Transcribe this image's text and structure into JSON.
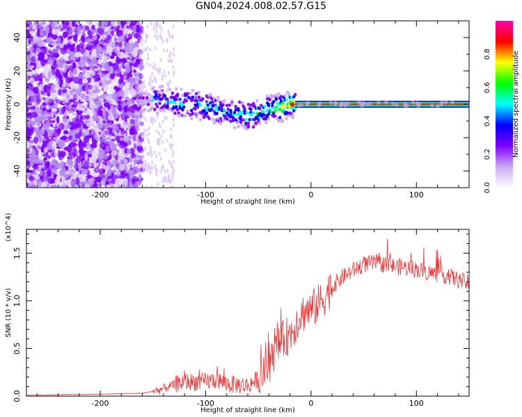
{
  "figure_title": "GN04.2024.008.02.57.G15",
  "chart_data": [
    {
      "type": "heatmap",
      "title": "",
      "xlabel": "Height of straight line (km)",
      "ylabel": "Frequency (Hz)",
      "xlim": [
        -270,
        150
      ],
      "ylim": [
        -50,
        50
      ],
      "x_ticks": [
        -200,
        -100,
        0,
        100
      ],
      "y_ticks": [
        -40,
        -20,
        0,
        20,
        40
      ],
      "colorbar": {
        "label": "Normalized spectral amplitude",
        "range": [
          0,
          1
        ],
        "ticks": [
          0.0,
          0.2,
          0.4,
          0.6,
          0.8
        ],
        "colormap": [
          "#ffffff",
          "#c9a9f0",
          "#7f00ff",
          "#0000ff",
          "#00ffff",
          "#00ff00",
          "#ffff00",
          "#ff0000",
          "#ff00aa"
        ]
      },
      "ridge": {
        "x": [
          -150,
          -130,
          -110,
          -100,
          -90,
          -80,
          -70,
          -60,
          -50,
          -40,
          -30,
          -20,
          -10,
          -5,
          0,
          50,
          100,
          150
        ],
        "frequency": [
          3,
          1,
          0,
          -1,
          -3,
          -4,
          -6,
          -7,
          -5,
          -3,
          -2,
          0,
          1,
          2,
          0,
          0,
          0,
          0
        ],
        "amplitude": [
          0.4,
          0.45,
          0.45,
          0.45,
          0.45,
          0.45,
          0.45,
          0.55,
          0.55,
          0.6,
          0.7,
          0.8,
          0.85,
          0.9,
          1.0,
          1.0,
          1.0,
          1.0
        ]
      },
      "noise_region": {
        "x_range": [
          -270,
          -160
        ],
        "amplitude": "low",
        "frequency_range": [
          -50,
          50
        ]
      }
    },
    {
      "type": "line",
      "title": "",
      "xlabel": "Height of straight line (km)",
      "ylabel": "SNR (10 * v/v)",
      "y_multiplier": "(x10^4)",
      "xlim": [
        -270,
        150
      ],
      "ylim": [
        0,
        1.75
      ],
      "x_ticks": [
        -200,
        -100,
        0,
        100
      ],
      "y_ticks": [
        0.0,
        0.5,
        1.0,
        1.5
      ],
      "series": [
        {
          "color": "#ee3333",
          "x": [
            -270,
            -200,
            -160,
            -145,
            -130,
            -120,
            -110,
            -100,
            -90,
            -80,
            -70,
            -60,
            -50,
            -40,
            -35,
            -30,
            -25,
            -20,
            -15,
            -10,
            -5,
            0,
            10,
            20,
            30,
            40,
            50,
            60,
            70,
            80,
            90,
            100,
            110,
            120,
            130,
            140,
            150
          ],
          "y": [
            0.01,
            0.02,
            0.03,
            0.06,
            0.12,
            0.15,
            0.15,
            0.15,
            0.17,
            0.13,
            0.12,
            0.11,
            0.18,
            0.3,
            0.45,
            0.55,
            0.6,
            0.65,
            0.75,
            0.85,
            0.9,
            0.9,
            1.0,
            1.15,
            1.25,
            1.32,
            1.38,
            1.4,
            1.38,
            1.36,
            1.35,
            1.33,
            1.3,
            1.28,
            1.26,
            1.22,
            1.18
          ]
        }
      ]
    }
  ]
}
